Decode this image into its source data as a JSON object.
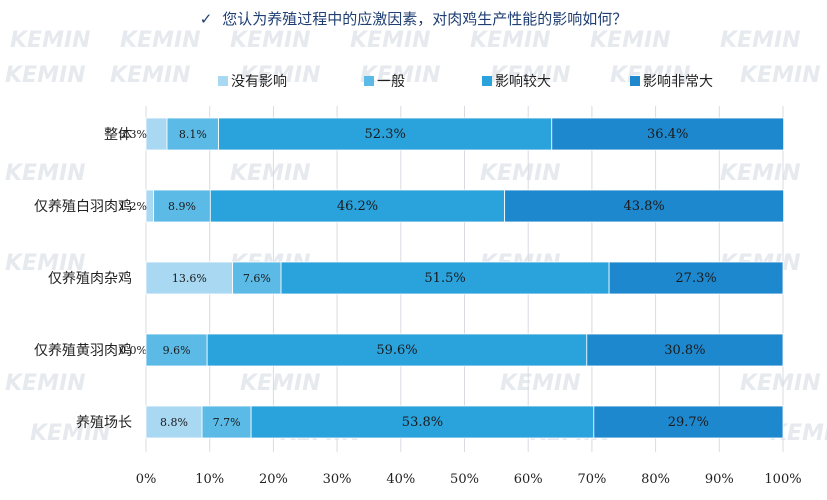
{
  "chart_data": {
    "type": "bar",
    "orientation": "horizontal",
    "stacked": true,
    "title": "您认为养殖过程中的应激因素，对肉鸡生产性能的影响如何？",
    "categories": [
      "整体",
      "仅养殖白羽肉鸡",
      "仅养殖肉杂鸡",
      "仅养殖黄羽肉鸡",
      "养殖场长"
    ],
    "series": [
      {
        "name": "没有影响",
        "color": "#a9d8f2",
        "values": [
          3.3,
          1.2,
          13.6,
          0.0,
          8.8
        ]
      },
      {
        "name": "一般",
        "color": "#5cbbe6",
        "values": [
          8.1,
          8.9,
          7.6,
          9.6,
          7.7
        ]
      },
      {
        "name": "影响较大",
        "color": "#2aa2dc",
        "values": [
          52.3,
          46.2,
          51.5,
          59.6,
          53.8
        ]
      },
      {
        "name": "影响非常大",
        "color": "#1e88cf",
        "values": [
          36.4,
          43.8,
          27.3,
          30.8,
          29.7
        ]
      }
    ],
    "data_labels": [
      [
        "3.3%",
        "1.2%",
        "13.6%",
        "0.0%",
        "8.8%"
      ],
      [
        "8.1%",
        "8.9%",
        "7.6%",
        "9.6%",
        "7.7%"
      ],
      [
        "52.3%",
        "46.2%",
        "51.5%",
        "59.6%",
        "53.8%"
      ],
      [
        "36.4%",
        "43.8%",
        "27.3%",
        "30.8%",
        "29.7%"
      ]
    ],
    "xlim": [
      0,
      100
    ],
    "xticks": [
      "0%",
      "10%",
      "20%",
      "30%",
      "40%",
      "50%",
      "60%",
      "70%",
      "80%",
      "90%",
      "100%"
    ],
    "legend_position": "top",
    "grid": "vertical",
    "watermark": "KEMIN"
  }
}
